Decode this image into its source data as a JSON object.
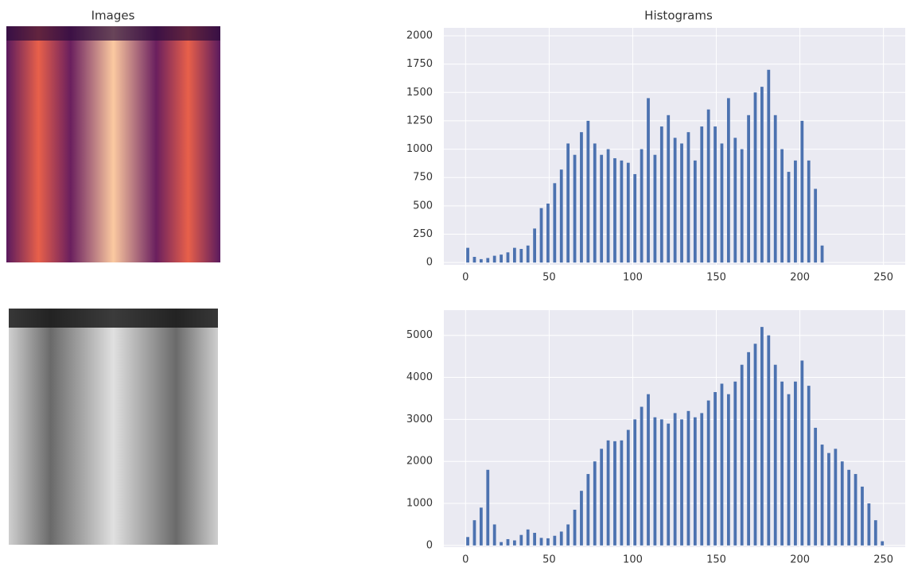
{
  "images_title": "Images",
  "chart_data": [
    {
      "type": "histogram",
      "title": "Histograms",
      "color": "#4c72b0",
      "grid": true,
      "xlim": [
        -13,
        263
      ],
      "ylim": [
        -20,
        2070
      ],
      "xticks": [
        0,
        50,
        100,
        150,
        200,
        250
      ],
      "yticks": [
        0,
        250,
        500,
        750,
        1000,
        1250,
        1500,
        1750,
        2000
      ],
      "bins": [
        0,
        4,
        8,
        12,
        16,
        20,
        24,
        28,
        32,
        36,
        40,
        44,
        48,
        52,
        56,
        60,
        64,
        68,
        72,
        76,
        80,
        84,
        88,
        92,
        96,
        100,
        104,
        108,
        112,
        116,
        120,
        124,
        128,
        132,
        136,
        140,
        144,
        148,
        152,
        156,
        160,
        164,
        168,
        172,
        176,
        180,
        184,
        188,
        192,
        196,
        200,
        204,
        208,
        212,
        216,
        220,
        224,
        228,
        232,
        236,
        240,
        244,
        248,
        252,
        256
      ],
      "values": [
        130,
        50,
        30,
        40,
        60,
        70,
        90,
        130,
        120,
        150,
        300,
        480,
        520,
        700,
        820,
        1050,
        950,
        1150,
        1250,
        1050,
        950,
        1000,
        920,
        900,
        880,
        780,
        1000,
        1450,
        950,
        1200,
        1300,
        1100,
        1050,
        1150,
        900,
        1200,
        1350,
        1200,
        1050,
        1450,
        1100,
        1000,
        1300,
        1500,
        1550,
        1700,
        1300,
        1000,
        800,
        900,
        1250,
        900,
        650,
        150,
        0,
        0,
        0,
        0,
        0,
        0,
        0,
        0,
        0,
        0
      ]
    },
    {
      "type": "histogram",
      "color": "#4c72b0",
      "grid": true,
      "xlim": [
        -13,
        263
      ],
      "ylim": [
        -40,
        5600
      ],
      "xticks": [
        0,
        50,
        100,
        150,
        200,
        250
      ],
      "yticks": [
        0,
        1000,
        2000,
        3000,
        4000,
        5000
      ],
      "bins": [
        0,
        4,
        8,
        12,
        16,
        20,
        24,
        28,
        32,
        36,
        40,
        44,
        48,
        52,
        56,
        60,
        64,
        68,
        72,
        76,
        80,
        84,
        88,
        92,
        96,
        100,
        104,
        108,
        112,
        116,
        120,
        124,
        128,
        132,
        136,
        140,
        144,
        148,
        152,
        156,
        160,
        164,
        168,
        172,
        176,
        180,
        184,
        188,
        192,
        196,
        200,
        204,
        208,
        212,
        216,
        220,
        224,
        228,
        232,
        236,
        240,
        244,
        248,
        252,
        256
      ],
      "values": [
        200,
        600,
        900,
        1800,
        500,
        80,
        150,
        120,
        250,
        380,
        300,
        180,
        170,
        230,
        330,
        500,
        850,
        1300,
        1700,
        2000,
        2300,
        2500,
        2480,
        2500,
        2750,
        3000,
        3300,
        3600,
        3050,
        3000,
        2900,
        3150,
        3000,
        3200,
        3050,
        3150,
        3450,
        3650,
        3850,
        3600,
        3900,
        4300,
        4600,
        4800,
        5200,
        5000,
        4300,
        3900,
        3600,
        3900,
        4400,
        3800,
        2800,
        2400,
        2200,
        2300,
        2000,
        1800,
        1700,
        1400,
        1000,
        600,
        100,
        0
      ]
    }
  ]
}
